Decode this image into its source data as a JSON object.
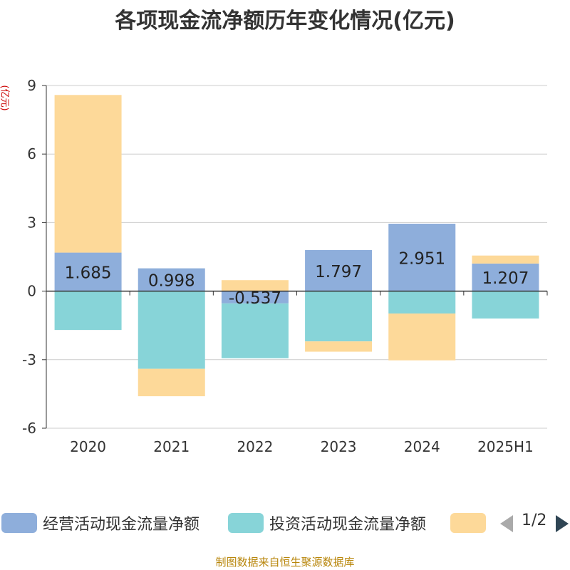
{
  "chart_data": {
    "type": "bar",
    "stacked": true,
    "title": "各项现金流净额历年变化情况(亿元)",
    "ylabel": "(亿元)",
    "ylim": [
      -6,
      9
    ],
    "yticks": [
      -6,
      -3,
      0,
      3,
      6,
      9
    ],
    "grid": true,
    "categories": [
      "2020",
      "2021",
      "2022",
      "2023",
      "2024",
      "2025H1"
    ],
    "series": [
      {
        "name": "经营活动现金流量净额",
        "color": "#8eaedb",
        "values": [
          1.685,
          0.998,
          -0.537,
          1.797,
          2.951,
          1.207
        ],
        "labels": [
          "1.685",
          "0.998",
          "-0.537",
          "1.797",
          "2.951",
          "1.207"
        ]
      },
      {
        "name": "投资活动现金流量净额",
        "color": "#87d4d8",
        "values": [
          -1.7,
          -3.4,
          -2.4,
          -2.2,
          -0.98,
          -1.2
        ]
      },
      {
        "name": "",
        "color": "#fdd999",
        "values": [
          6.9,
          -1.2,
          0.48,
          -0.45,
          -2.05,
          0.35
        ]
      }
    ],
    "legend_position": "bottom"
  },
  "legend": {
    "items": [
      "经营活动现金流量净额",
      "投资活动现金流量净额",
      ""
    ],
    "pager": "1/2"
  },
  "source": "制图数据来自恒生聚源数据库"
}
